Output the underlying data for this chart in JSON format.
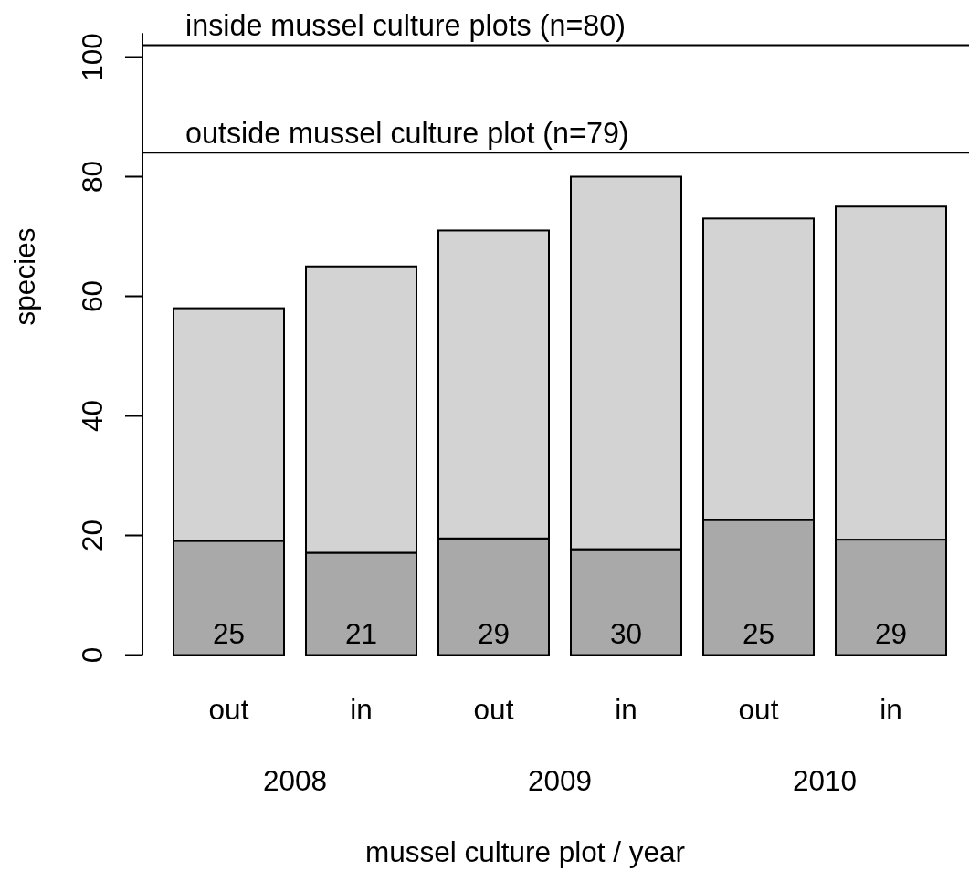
{
  "chart_data": {
    "type": "bar",
    "stacked": true,
    "xlabel": "mussel culture plot / year",
    "ylabel": "species",
    "categories": [
      "out",
      "in",
      "out",
      "in",
      "out",
      "in"
    ],
    "series": [
      {
        "color": "#a9a9a9",
        "values": [
          19.1,
          17.1,
          19.5,
          17.7,
          22.6,
          19.3
        ]
      },
      {
        "color": "#d3d3d3",
        "values": [
          38.9,
          47.9,
          51.5,
          62.3,
          50.4,
          55.7
        ]
      }
    ],
    "ylim": [
      0,
      104
    ],
    "yticks": [
      0,
      20,
      40,
      60,
      80,
      100
    ],
    "ref_lines": [
      {
        "axis": "y",
        "value": 102,
        "color": "#000000"
      },
      {
        "axis": "y",
        "value": 84,
        "color": "#000000"
      }
    ],
    "annotations": [
      {
        "text": "inside mussel culture plots (n=80)",
        "y": 102
      },
      {
        "text": "outside mussel culture plot (n=79)",
        "y": 84
      },
      "25",
      "21",
      "29",
      "30",
      "25",
      "29",
      "2008",
      "2009",
      "2010"
    ]
  }
}
